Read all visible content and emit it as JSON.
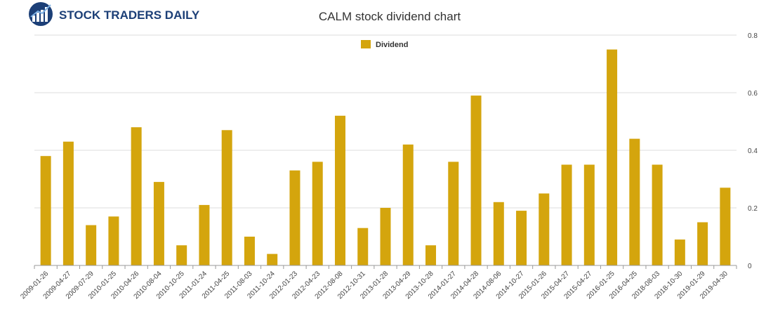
{
  "brand": {
    "name": "STOCK TRADERS DAILY"
  },
  "chart_data": {
    "type": "bar",
    "title": "CALM stock dividend chart",
    "xlabel": "",
    "ylabel": "",
    "ylim": [
      0,
      0.8
    ],
    "yticks": [
      "0",
      "0.2",
      "0.4",
      "0.6",
      "0.8"
    ],
    "grid": true,
    "legend_position": "top-center",
    "colors": {
      "bar": "#d4a50d",
      "grid": "#dddddd",
      "axis": "#999999"
    },
    "categories": [
      "2009-01-26",
      "2009-04-27",
      "2009-07-29",
      "2010-01-25",
      "2010-04-26",
      "2010-08-04",
      "2010-10-25",
      "2011-01-24",
      "2011-04-25",
      "2011-08-03",
      "2011-10-24",
      "2012-01-23",
      "2012-04-23",
      "2012-08-08",
      "2012-10-31",
      "2013-01-28",
      "2013-04-29",
      "2013-10-28",
      "2014-01-27",
      "2014-04-28",
      "2014-08-06",
      "2014-10-27",
      "2015-01-26",
      "2015-04-27",
      "2015-04-27",
      "2016-01-25",
      "2016-04-25",
      "2018-08-03",
      "2018-10-30",
      "2019-01-29",
      "2019-04-30"
    ],
    "series": [
      {
        "name": "Dividend",
        "values": [
          0.38,
          0.43,
          0.14,
          0.17,
          0.48,
          0.29,
          0.07,
          0.21,
          0.47,
          0.1,
          0.04,
          0.33,
          0.36,
          0.52,
          0.13,
          0.2,
          0.42,
          0.07,
          0.36,
          0.59,
          0.22,
          0.19,
          0.25,
          0.35,
          0.35,
          0.75,
          0.44,
          0.35,
          0.09,
          0.15,
          0.27
        ]
      }
    ]
  }
}
